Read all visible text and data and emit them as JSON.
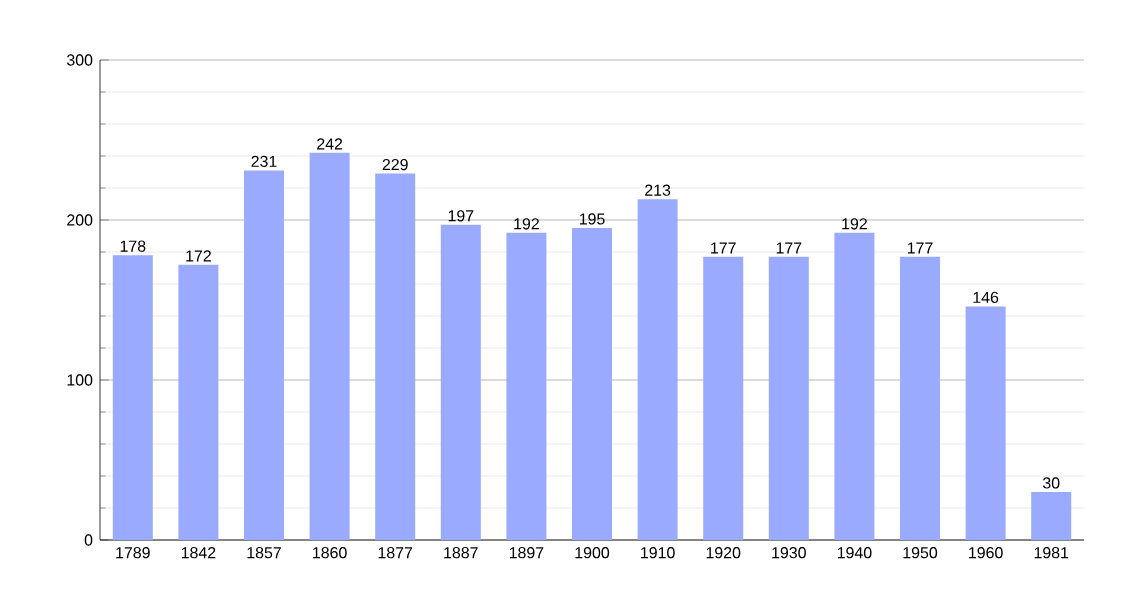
{
  "chart_data": {
    "type": "bar",
    "categories": [
      "1789",
      "1842",
      "1857",
      "1860",
      "1877",
      "1887",
      "1897",
      "1900",
      "1910",
      "1920",
      "1930",
      "1940",
      "1950",
      "1960",
      "1981"
    ],
    "values": [
      178,
      172,
      231,
      242,
      229,
      197,
      192,
      195,
      213,
      177,
      177,
      192,
      177,
      146,
      30
    ],
    "color": "#99aaff",
    "ylim": [
      0,
      300
    ],
    "yticks": [
      0,
      100,
      200,
      300
    ],
    "grid": "y",
    "data_labels": true
  }
}
